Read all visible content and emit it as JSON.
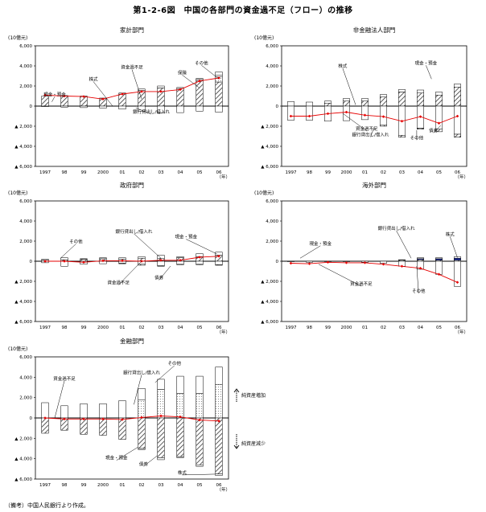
{
  "figure": {
    "title": "第1-2-6図　中国の各部門の資金過不足（フロー）の推移",
    "note": "（備考）中国人民銀行より作成。",
    "unit_label": "(10億元)",
    "year_suffix": "（年）",
    "years": [
      "1997",
      "98",
      "99",
      "2000",
      "01",
      "02",
      "03",
      "04",
      "05",
      "06"
    ],
    "y_ticks": [
      "6,000",
      "4,000",
      "2,000",
      "0",
      "▲ 2,000",
      "▲ 4,000",
      "▲ 6,000"
    ],
    "side_labels": {
      "increase": "純資産増加",
      "decrease": "純資産減少"
    }
  },
  "chart_data": [
    {
      "id": "household",
      "type": "bar",
      "title": "家計部門",
      "categories": [
        "1997",
        "98",
        "99",
        "2000",
        "01",
        "02",
        "03",
        "04",
        "05",
        "06"
      ],
      "ylim": [
        -6000,
        6000
      ],
      "series": [
        {
          "name": "現金・預金",
          "pattern": "hatch",
          "values": [
            1000,
            1050,
            1000,
            800,
            1200,
            1550,
            1800,
            1750,
            2500,
            2400
          ]
        },
        {
          "name": "株式",
          "pattern": "blue",
          "values": [
            0,
            0,
            0,
            0,
            0,
            0,
            0,
            0,
            0,
            0
          ]
        },
        {
          "name": "債券",
          "pattern": "dots",
          "values": [
            0,
            0,
            0,
            0,
            0,
            0,
            0,
            0,
            0,
            500
          ]
        },
        {
          "name": "保険",
          "pattern": "white",
          "values": [
            0,
            0,
            0,
            0,
            0,
            0,
            0,
            0,
            150,
            200
          ]
        },
        {
          "name": "その他",
          "pattern": "white",
          "values": [
            0,
            0,
            0,
            0,
            100,
            150,
            200,
            100,
            100,
            300
          ]
        },
        {
          "name": "銀行貸出し/借入れ",
          "pattern": "white",
          "values": [
            -50,
            -100,
            -150,
            -200,
            -300,
            -500,
            -700,
            -650,
            -500,
            -600
          ]
        }
      ],
      "line": {
        "name": "資金過不足",
        "values": [
          1100,
          1000,
          950,
          700,
          1200,
          1450,
          1450,
          1650,
          2500,
          2800
        ]
      },
      "annotations": [
        {
          "text": "現金・預金",
          "lx": 0.1,
          "ly": 0.17,
          "tx": 0.085,
          "ty": 0.07
        },
        {
          "text": "株式",
          "lx": 0.3,
          "ly": 0.42,
          "tx": 0.4,
          "ty": 0.0
        },
        {
          "text": "資金過不足",
          "lx": 0.5,
          "ly": 0.62,
          "tx": 0.55,
          "ty": 0.12
        },
        {
          "text": "その他",
          "lx": 0.86,
          "ly": 0.69,
          "tx": 0.95,
          "ty": 0.45
        },
        {
          "text": "保険",
          "lx": 0.76,
          "ly": 0.53,
          "tx": 0.85,
          "ty": 0.3
        },
        {
          "text": "銀行貸出し/借入れ",
          "lx": 0.6,
          "ly": -0.12,
          "tx": 0.52,
          "ty": -0.03
        }
      ]
    },
    {
      "id": "nonfinancial",
      "type": "bar",
      "title": "非金融法人部門",
      "categories": [
        "1997",
        "98",
        "99",
        "2000",
        "01",
        "02",
        "03",
        "04",
        "05",
        "06"
      ],
      "ylim": [
        -6000,
        6000
      ],
      "series": [
        {
          "name": "現金・預金",
          "pattern": "hatch",
          "values": [
            0,
            0,
            300,
            500,
            500,
            900,
            1400,
            1300,
            1100,
            1900
          ]
        },
        {
          "name": "株式",
          "pattern": "blue",
          "values": [
            0,
            0,
            0,
            0,
            0,
            0,
            0,
            0,
            0,
            0
          ]
        },
        {
          "name": "債券",
          "pattern": "dots",
          "values": [
            0,
            0,
            0,
            0,
            0,
            0,
            0,
            0,
            0,
            0
          ]
        },
        {
          "name": "その他",
          "pattern": "white",
          "values": [
            450,
            400,
            200,
            250,
            250,
            250,
            250,
            300,
            300,
            300
          ]
        },
        {
          "name": "銀行貸出し/借入れ",
          "pattern": "white",
          "values": [
            -1400,
            -1400,
            -1500,
            -1450,
            -1350,
            -1900,
            -2900,
            -2200,
            -2300,
            -2800
          ]
        },
        {
          "name": "債券",
          "pattern": "hatch",
          "values": [
            0,
            0,
            0,
            0,
            0,
            -100,
            -200,
            -100,
            -250,
            -300
          ]
        }
      ],
      "line": {
        "name": "資金過不足",
        "values": [
          -1000,
          -1000,
          -750,
          -600,
          -900,
          -1050,
          -1500,
          -1050,
          -1700,
          -1000
        ]
      },
      "annotations": [
        {
          "text": "株式",
          "lx": 0.33,
          "ly": 0.64,
          "tx": 0.4,
          "ty": 0.02
        },
        {
          "text": "現金・預金",
          "lx": 0.78,
          "ly": 0.69,
          "tx": 0.81,
          "ty": 0.45
        },
        {
          "text": "資金過不足",
          "lx": 0.46,
          "ly": -0.4,
          "tx": 0.33,
          "ty": -0.12
        },
        {
          "text": "銀行貸出し/借入れ",
          "lx": 0.48,
          "ly": -0.5,
          "tx": 0.5,
          "ty": -0.35
        },
        {
          "text": "その他",
          "lx": 0.73,
          "ly": -0.55,
          "tx": 0.73,
          "ty": -0.4
        },
        {
          "text": "債券",
          "lx": 0.82,
          "ly": -0.43,
          "tx": 0.86,
          "ty": -0.32
        }
      ]
    },
    {
      "id": "government",
      "type": "bar",
      "title": "政府部門",
      "categories": [
        "1997",
        "98",
        "99",
        "2000",
        "01",
        "02",
        "03",
        "04",
        "05",
        "06"
      ],
      "ylim": [
        -6000,
        6000
      ],
      "series": [
        {
          "name": "現金・預金",
          "pattern": "hatch",
          "values": [
            100,
            150,
            200,
            250,
            200,
            300,
            300,
            350,
            450,
            600
          ]
        },
        {
          "name": "株式",
          "pattern": "blue",
          "values": [
            0,
            0,
            0,
            0,
            0,
            0,
            0,
            0,
            0,
            0
          ]
        },
        {
          "name": "債券",
          "pattern": "dots",
          "values": [
            0,
            0,
            0,
            0,
            0,
            0,
            0,
            0,
            0,
            0
          ]
        },
        {
          "name": "その他",
          "pattern": "white",
          "values": [
            100,
            200,
            50,
            100,
            150,
            150,
            300,
            100,
            300,
            300
          ]
        },
        {
          "name": "銀行貸出し/借入れ",
          "pattern": "white",
          "values": [
            -150,
            -500,
            -300,
            -250,
            -200,
            -300,
            -450,
            -300,
            -300,
            -350
          ]
        },
        {
          "name": "債券",
          "pattern": "hatch",
          "values": [
            0,
            0,
            0,
            0,
            -50,
            -100,
            -50,
            -50,
            -50,
            -50
          ]
        }
      ],
      "line": {
        "name": "資金過不足",
        "values": [
          0,
          0,
          -100,
          50,
          50,
          0,
          100,
          100,
          400,
          500
        ]
      },
      "annotations": [
        {
          "text": "その他",
          "lx": 0.21,
          "ly": 0.3,
          "tx": 0.13,
          "ty": 0.05
        },
        {
          "text": "銀行貸出し/借入れ",
          "lx": 0.51,
          "ly": 0.47,
          "tx": 0.65,
          "ty": 0.05
        },
        {
          "text": "現金・預金",
          "lx": 0.78,
          "ly": 0.38,
          "tx": 0.94,
          "ty": 0.12
        },
        {
          "text": "資金過不足",
          "lx": 0.43,
          "ly": -0.38,
          "tx": 0.55,
          "ty": 0.0
        },
        {
          "text": "債券",
          "lx": 0.64,
          "ly": -0.3,
          "tx": 0.7,
          "ty": -0.08
        }
      ]
    },
    {
      "id": "overseas",
      "type": "bar",
      "title": "海外部門",
      "categories": [
        "1997",
        "98",
        "99",
        "2000",
        "01",
        "02",
        "03",
        "04",
        "05",
        "06"
      ],
      "ylim": [
        -6000,
        6000
      ],
      "series": [
        {
          "name": "現金・預金",
          "pattern": "hatch",
          "values": [
            0,
            0,
            0,
            0,
            0,
            0,
            100,
            150,
            100,
            100
          ]
        },
        {
          "name": "株式",
          "pattern": "blue",
          "values": [
            0,
            0,
            0,
            0,
            0,
            0,
            0,
            100,
            150,
            200
          ]
        },
        {
          "name": "債券",
          "pattern": "dots",
          "values": [
            0,
            0,
            0,
            0,
            0,
            0,
            0,
            0,
            0,
            0
          ]
        },
        {
          "name": "その他",
          "pattern": "white",
          "values": [
            0,
            0,
            0,
            0,
            0,
            0,
            50,
            100,
            100,
            150
          ]
        },
        {
          "name": "銀行貸出し/借入れ",
          "pattern": "white",
          "values": [
            -50,
            -100,
            -50,
            -50,
            -100,
            -200,
            -500,
            -800,
            -1300,
            -2500
          ]
        },
        {
          "name": "債券",
          "pattern": "hatch",
          "values": [
            0,
            0,
            0,
            0,
            0,
            0,
            0,
            0,
            0,
            0
          ]
        }
      ],
      "line": {
        "name": "資金過不足",
        "values": [
          -200,
          -250,
          -100,
          -150,
          -150,
          -300,
          -500,
          -700,
          -1300,
          -2100
        ]
      },
      "annotations": [
        {
          "text": "現金・預金",
          "lx": 0.21,
          "ly": 0.27,
          "tx": 0.1,
          "ty": 0.05
        },
        {
          "text": "資金過不足",
          "lx": 0.43,
          "ly": -0.4,
          "tx": 0.2,
          "ty": -0.05
        },
        {
          "text": "銀行貸出し/借入れ",
          "lx": 0.62,
          "ly": 0.52,
          "tx": 0.7,
          "ty": 0.05
        },
        {
          "text": "株式",
          "lx": 0.91,
          "ly": 0.42,
          "tx": 0.95,
          "ty": 0.06
        },
        {
          "text": "その他",
          "lx": 0.74,
          "ly": -0.52,
          "tx": 0.73,
          "ty": -0.08
        }
      ]
    },
    {
      "id": "financial",
      "type": "bar",
      "title": "金融部門",
      "categories": [
        "1997",
        "98",
        "99",
        "2000",
        "01",
        "02",
        "03",
        "04",
        "05",
        "06"
      ],
      "ylim": [
        -6000,
        6000
      ],
      "series": [
        {
          "name": "現金・預金",
          "pattern": "hatch",
          "values": [
            0,
            0,
            0,
            0,
            0,
            0,
            0,
            0,
            0,
            0
          ]
        },
        {
          "name": "株式",
          "pattern": "blue",
          "values": [
            0,
            0,
            0,
            0,
            0,
            0,
            0,
            0,
            0,
            0
          ]
        },
        {
          "name": "債券",
          "pattern": "dots",
          "values": [
            0,
            0,
            0,
            0,
            0,
            1800,
            2800,
            2400,
            2400,
            3300
          ]
        },
        {
          "name": "その他",
          "pattern": "white",
          "values": [
            1500,
            1200,
            1400,
            1400,
            1700,
            1100,
            1000,
            1700,
            1700,
            1700
          ]
        },
        {
          "name": "現金・預金",
          "pattern": "hatch",
          "values": [
            -1500,
            -1200,
            -1600,
            -1700,
            -2100,
            -3000,
            -3900,
            -3800,
            -4600,
            -5500
          ]
        },
        {
          "name": "株式",
          "pattern": "white",
          "values": [
            0,
            0,
            0,
            0,
            0,
            -100,
            -200,
            -100,
            -150,
            -150
          ]
        }
      ],
      "line": {
        "name": "資金過不足",
        "values": [
          0,
          -100,
          -100,
          -100,
          -150,
          50,
          200,
          100,
          -200,
          -300
        ]
      },
      "annotations": [
        {
          "text": "資金過不足",
          "lx": 0.15,
          "ly": 0.62,
          "tx": 0.1,
          "ty": 0.0
        },
        {
          "text": "銀行貸出し/借入れ",
          "lx": 0.55,
          "ly": 0.72,
          "tx": 0.51,
          "ty": 0.22
        },
        {
          "text": "その他",
          "lx": 0.72,
          "ly": 0.87,
          "tx": 0.62,
          "ty": 0.58
        },
        {
          "text": "現金・預金",
          "lx": 0.42,
          "ly": -0.68,
          "tx": 0.53,
          "ty": -0.48
        },
        {
          "text": "債券",
          "lx": 0.56,
          "ly": -0.78,
          "tx": 0.63,
          "ty": -0.62
        },
        {
          "text": "株式",
          "lx": 0.76,
          "ly": -0.92,
          "tx": 0.93,
          "ty": -0.92
        }
      ]
    }
  ]
}
